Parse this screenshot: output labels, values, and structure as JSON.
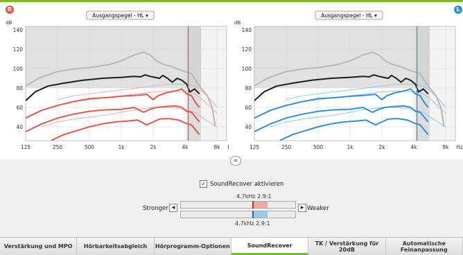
{
  "sides": {
    "right_badge": "R",
    "left_badge": "L"
  },
  "charts": [
    {
      "id": "right",
      "dropdown_label": "Ausgangspegel - HL ▾",
      "color": "#e2574c",
      "light_color": "#f0a8a0"
    },
    {
      "id": "left",
      "dropdown_label": "Ausgangspegel - HL ▾",
      "color": "#2f8fd8",
      "light_color": "#8cc1ea"
    }
  ],
  "axes": {
    "y_unit": "dB",
    "x_unit": "Hz",
    "y_ticks": [
      "140",
      "120",
      "100",
      "80",
      "60",
      "40"
    ],
    "x_ticks": [
      "125",
      "250",
      "500",
      "1k",
      "2k",
      "4k",
      "8k"
    ]
  },
  "link_icon": "link-icon",
  "soundrecover": {
    "checkbox_checked": true,
    "checkbox_label": "SoundRecover aktivieren",
    "top_setting": "4.7kHz  2.9:1",
    "bottom_setting": "4.7kHz  2.9:1",
    "stronger_label": "Stronger",
    "weaker_label": "Weaker",
    "right_color": "#e2574c",
    "left_color": "#2f8fd8"
  },
  "tabs": [
    {
      "label": "Verstärkung und MPO",
      "active": false
    },
    {
      "label": "Hörbarkeitsabgleich",
      "active": false
    },
    {
      "label": "Hörprogramm-Optionen",
      "active": false
    },
    {
      "label": "SoundRecover",
      "active": true
    },
    {
      "label": "TK / Verstärkung für 20dB",
      "active": false
    },
    {
      "label": "Automatische Feinanpassung",
      "active": false
    }
  ],
  "accent_color": "#78be20"
}
